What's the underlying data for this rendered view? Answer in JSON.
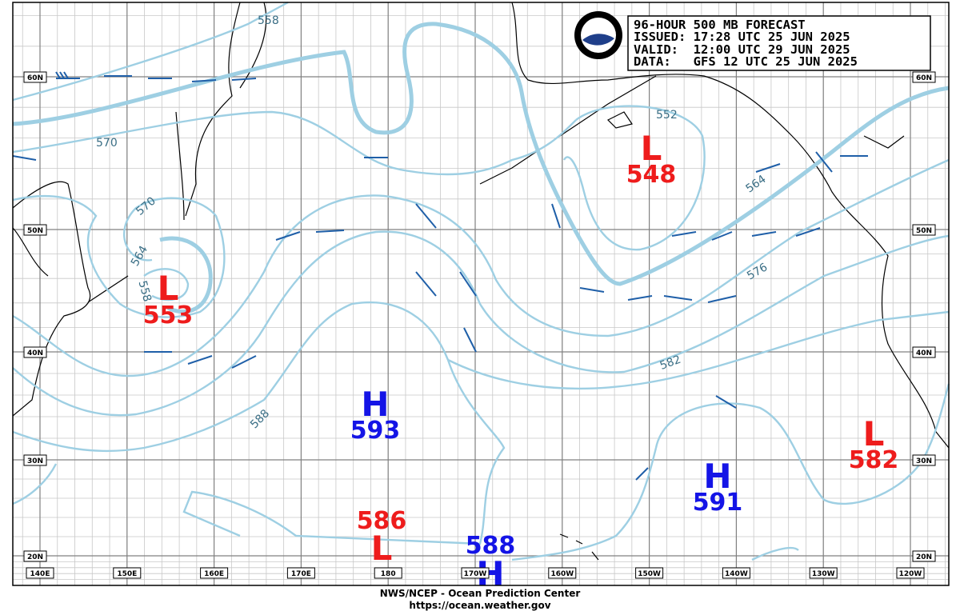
{
  "header": {
    "lines": [
      "96-HOUR 500 MB FORECAST",
      "ISSUED: 17:28 UTC 25 JUN 2025",
      "VALID:  12:00 UTC 29 JUN 2025",
      "DATA:   GFS 12 UTC 25 JUN 2025"
    ]
  },
  "latitudes": [
    "60N",
    "50N",
    "40N",
    "30N",
    "20N"
  ],
  "longitudes": [
    "140E",
    "150E",
    "160E",
    "170E",
    "180",
    "170W",
    "160W",
    "150W",
    "140W",
    "130W",
    "120W"
  ],
  "systems": [
    {
      "symbol": "L",
      "value": 553
    },
    {
      "symbol": "L",
      "value": 548
    },
    {
      "symbol": "H",
      "value": 593
    },
    {
      "symbol": "H",
      "value": 591
    },
    {
      "symbol": "L",
      "value": 582
    },
    {
      "symbol": "L",
      "value": 586
    },
    {
      "symbol": "H",
      "value": 588
    }
  ],
  "contour_labels": [
    558,
    570,
    570,
    564,
    558,
    552,
    564,
    576,
    582,
    588
  ],
  "footer": {
    "line1": "NWS/NCEP - Ocean Prediction Center",
    "line2": "https://ocean.weather.gov"
  }
}
